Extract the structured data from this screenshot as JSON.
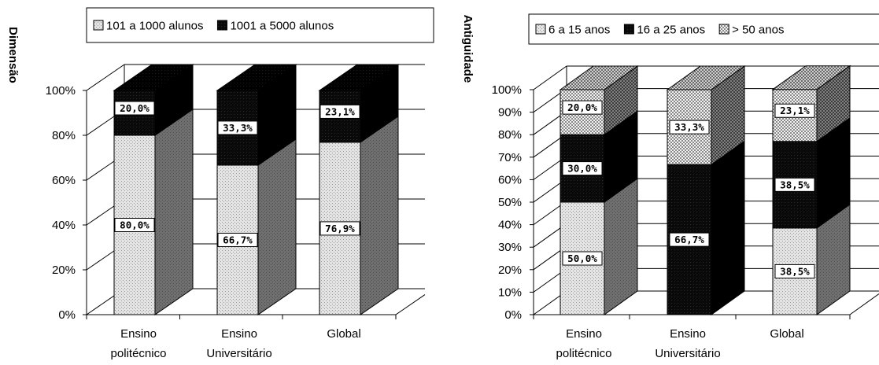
{
  "chart_data": [
    {
      "type": "bar",
      "stacked": true,
      "three_d": true,
      "ylabel": "Dimensão",
      "categories": [
        [
          "Ensino",
          "politécnico"
        ],
        [
          "Ensino",
          "Universitário"
        ],
        [
          "Global"
        ]
      ],
      "yticks": [
        "0%",
        "20%",
        "40%",
        "60%",
        "80%",
        "100%"
      ],
      "ylim": [
        0,
        100
      ],
      "legend_position": "top",
      "series": [
        {
          "name": "101 a 1000 alunos",
          "values": [
            80.0,
            66.7,
            76.9
          ],
          "labels": [
            "80,0%",
            "66,7%",
            "76,9%"
          ],
          "pattern": "light-dots"
        },
        {
          "name": "1001 a 5000 alunos",
          "values": [
            20.0,
            33.3,
            23.1
          ],
          "labels": [
            "20,0%",
            "33,3%",
            "23,1%"
          ],
          "pattern": "black"
        }
      ]
    },
    {
      "type": "bar",
      "stacked": true,
      "three_d": true,
      "ylabel": "Antiguidade",
      "categories": [
        [
          "Ensino",
          "politécnico"
        ],
        [
          "Ensino",
          "Universitário"
        ],
        [
          "Global"
        ]
      ],
      "yticks": [
        "0%",
        "10%",
        "20%",
        "30%",
        "40%",
        "50%",
        "60%",
        "70%",
        "80%",
        "90%",
        "100%"
      ],
      "ylim": [
        0,
        100
      ],
      "legend_position": "top",
      "series": [
        {
          "name": "6 a 15 anos",
          "values": [
            50.0,
            0,
            38.5
          ],
          "labels": [
            "50,0%",
            "",
            "38,5%"
          ],
          "pattern": "light-dots"
        },
        {
          "name": "16 a 25 anos",
          "values": [
            30.0,
            66.7,
            38.5
          ],
          "labels": [
            "30,0%",
            "66,7%",
            "38,5%"
          ],
          "pattern": "black"
        },
        {
          "name": "> 50 anos",
          "values": [
            20.0,
            33.3,
            23.1
          ],
          "labels": [
            "20,0%",
            "33,3%",
            "23,1%"
          ],
          "pattern": "checker"
        }
      ]
    }
  ]
}
